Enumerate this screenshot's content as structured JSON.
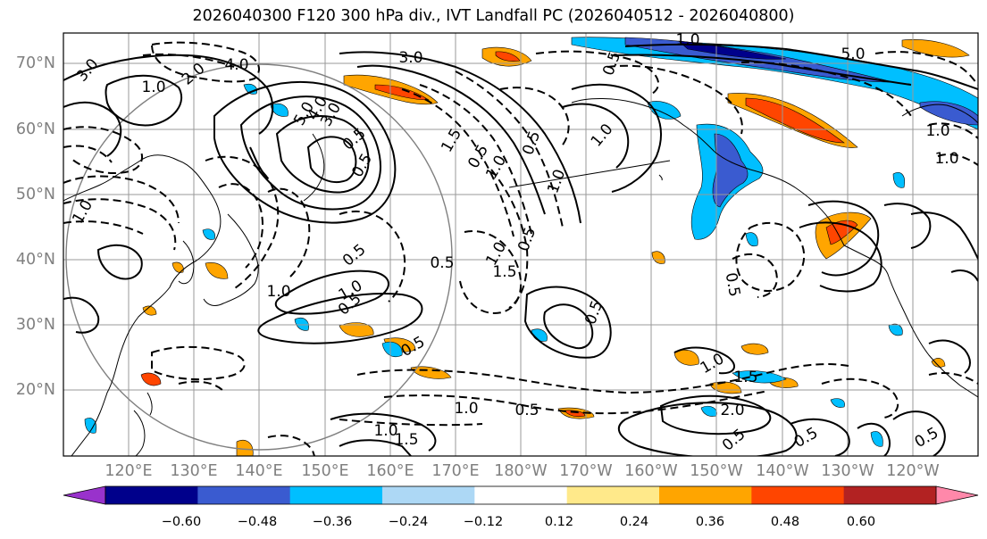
{
  "title": "2026040300 F120 300 hPa div., IVT Landfall PC (2026040512 - 2026040800)",
  "lat_labels": [
    "70°N",
    "60°N",
    "50°N",
    "40°N",
    "30°N",
    "20°N"
  ],
  "lon_labels": [
    "120°E",
    "130°E",
    "140°E",
    "150°E",
    "160°E",
    "170°E",
    "180°W",
    "170°W",
    "160°W",
    "150°W",
    "140°W",
    "130°W",
    "120°W"
  ],
  "colorbar": {
    "colors": [
      "#9932cc",
      "#00008b",
      "#3a5bd0",
      "#00bfff",
      "#add8f5",
      "#ffffff",
      "#ffe98a",
      "#ffa500",
      "#ff4500",
      "#b22222",
      "#ff88aa"
    ],
    "ticks": [
      "−0.60",
      "−0.48",
      "−0.36",
      "−0.24",
      "−0.12",
      "0.12",
      "0.24",
      "0.36",
      "0.48",
      "0.60"
    ]
  },
  "contour_labels": [
    "3.0",
    "4.0",
    "3.0",
    "2.0",
    "1.0",
    "5.0",
    "0.5",
    "4.0",
    "3.0",
    "5.0",
    "1.0",
    "0.5",
    "1.0",
    "1.0",
    "1.5",
    "0.5",
    "1.0",
    "0.5",
    "1.0",
    "0.5",
    "1.5",
    "1.0",
    "0.5",
    "0.5",
    "0.5",
    "0.5",
    "1.0",
    "1.0",
    "1.0",
    "0.5",
    "0.5",
    "0.5",
    "1.0",
    "1.5",
    "0.5",
    "0.5",
    "0.5",
    "1.0",
    "1.0",
    "1.5",
    "2.0",
    "1.0",
    "0.5"
  ]
}
